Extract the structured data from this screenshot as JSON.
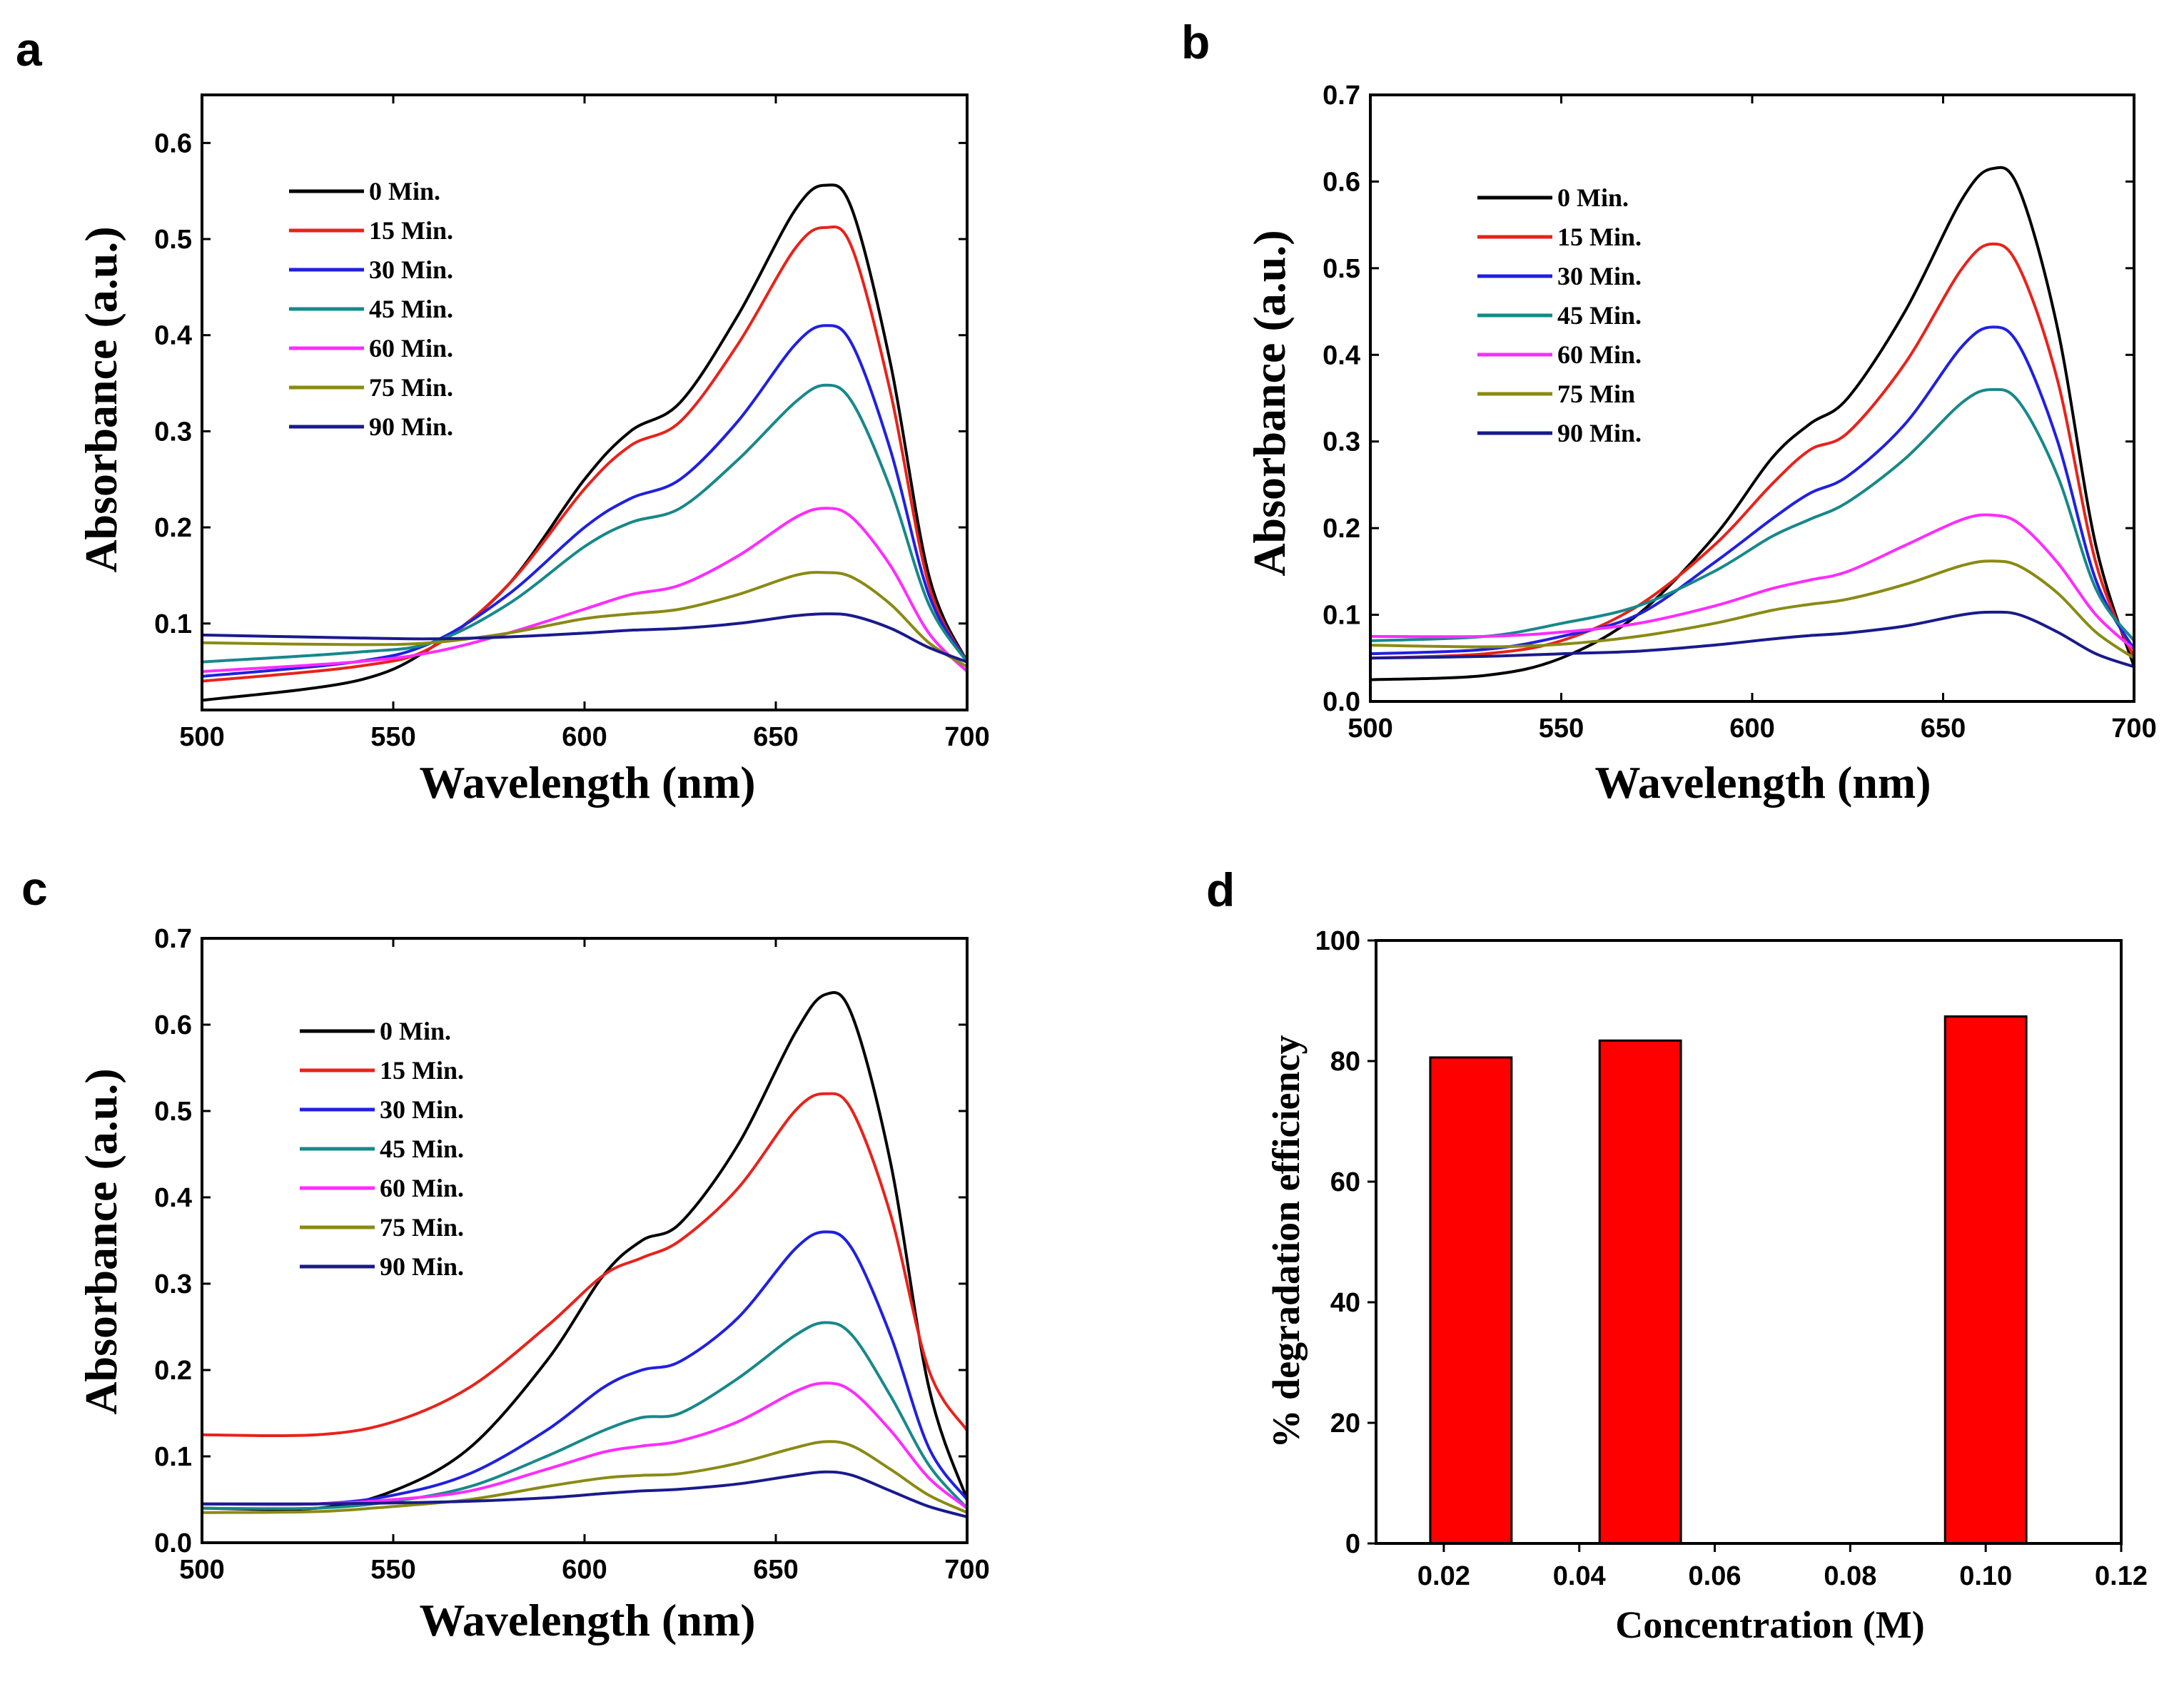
{
  "chart_data": [
    {
      "panel": "a",
      "type": "line",
      "xlabel": "Wavelength (nm)",
      "ylabel": "Absorbance (a.u.)",
      "xlim": [
        500,
        700
      ],
      "ylim": [
        0.01,
        0.65
      ],
      "xticks": [
        500,
        550,
        600,
        650,
        700
      ],
      "yticks": [
        0.1,
        0.2,
        0.3,
        0.4,
        0.5,
        0.6
      ],
      "series": [
        {
          "name": "0 Min.",
          "color": "#000000",
          "x": [
            500,
            540,
            560,
            580,
            600,
            612,
            625,
            640,
            655,
            663,
            670,
            680,
            690,
            700
          ],
          "y": [
            0.02,
            0.04,
            0.075,
            0.14,
            0.25,
            0.3,
            0.33,
            0.42,
            0.53,
            0.556,
            0.53,
            0.37,
            0.15,
            0.06
          ]
        },
        {
          "name": "15 Min.",
          "color": "#e8221b",
          "x": [
            500,
            540,
            560,
            580,
            600,
            612,
            625,
            640,
            655,
            663,
            670,
            680,
            690,
            700
          ],
          "y": [
            0.04,
            0.055,
            0.075,
            0.14,
            0.24,
            0.285,
            0.31,
            0.39,
            0.49,
            0.512,
            0.49,
            0.34,
            0.14,
            0.06
          ]
        },
        {
          "name": "30 Min.",
          "color": "#2020e0",
          "x": [
            500,
            540,
            560,
            580,
            600,
            612,
            625,
            640,
            655,
            663,
            670,
            680,
            690,
            700
          ],
          "y": [
            0.045,
            0.06,
            0.08,
            0.13,
            0.2,
            0.23,
            0.25,
            0.31,
            0.39,
            0.41,
            0.39,
            0.28,
            0.13,
            0.06
          ]
        },
        {
          "name": "45 Min.",
          "color": "#17888a",
          "x": [
            500,
            540,
            560,
            580,
            600,
            612,
            625,
            640,
            655,
            663,
            670,
            680,
            690,
            700
          ],
          "y": [
            0.06,
            0.07,
            0.08,
            0.12,
            0.18,
            0.205,
            0.22,
            0.27,
            0.33,
            0.348,
            0.33,
            0.24,
            0.12,
            0.06
          ]
        },
        {
          "name": "60 Min.",
          "color": "#ff2bff",
          "x": [
            500,
            540,
            560,
            580,
            600,
            612,
            625,
            640,
            655,
            663,
            670,
            680,
            690,
            700
          ],
          "y": [
            0.05,
            0.06,
            0.07,
            0.09,
            0.115,
            0.13,
            0.14,
            0.17,
            0.21,
            0.22,
            0.21,
            0.16,
            0.09,
            0.05
          ]
        },
        {
          "name": "75 Min.",
          "color": "#8a8a14",
          "x": [
            500,
            540,
            560,
            580,
            600,
            612,
            625,
            640,
            655,
            663,
            670,
            680,
            690,
            700
          ],
          "y": [
            0.08,
            0.078,
            0.08,
            0.09,
            0.105,
            0.11,
            0.115,
            0.13,
            0.15,
            0.153,
            0.148,
            0.12,
            0.08,
            0.055
          ]
        },
        {
          "name": "90 Min.",
          "color": "#1a1a8c",
          "x": [
            500,
            540,
            560,
            580,
            600,
            612,
            625,
            640,
            655,
            663,
            670,
            680,
            690,
            700
          ],
          "y": [
            0.088,
            0.085,
            0.084,
            0.086,
            0.09,
            0.093,
            0.095,
            0.1,
            0.108,
            0.11,
            0.108,
            0.095,
            0.075,
            0.06
          ]
        }
      ]
    },
    {
      "panel": "b",
      "type": "line",
      "xlabel": "Wavelength (nm)",
      "ylabel": "Absorbance (a.u.)",
      "xlim": [
        500,
        700
      ],
      "ylim": [
        0.0,
        0.7
      ],
      "xticks": [
        500,
        550,
        600,
        650,
        700
      ],
      "yticks": [
        0.0,
        0.1,
        0.2,
        0.3,
        0.4,
        0.5,
        0.6,
        0.7
      ],
      "series": [
        {
          "name": "0 Min.",
          "color": "#000000",
          "x": [
            500,
            530,
            550,
            570,
            590,
            605,
            615,
            625,
            640,
            655,
            663,
            670,
            680,
            690,
            700
          ],
          "y": [
            0.025,
            0.03,
            0.05,
            0.1,
            0.19,
            0.28,
            0.32,
            0.35,
            0.45,
            0.58,
            0.615,
            0.59,
            0.43,
            0.18,
            0.04
          ]
        },
        {
          "name": "15 Min.",
          "color": "#e8221b",
          "x": [
            500,
            530,
            550,
            570,
            590,
            605,
            615,
            625,
            640,
            655,
            663,
            670,
            680,
            690,
            700
          ],
          "y": [
            0.05,
            0.055,
            0.07,
            0.11,
            0.18,
            0.25,
            0.29,
            0.31,
            0.39,
            0.5,
            0.528,
            0.5,
            0.37,
            0.16,
            0.05
          ]
        },
        {
          "name": "30 Min.",
          "color": "#2020e0",
          "x": [
            500,
            530,
            550,
            570,
            590,
            605,
            615,
            625,
            640,
            655,
            663,
            670,
            680,
            690,
            700
          ],
          "y": [
            0.055,
            0.06,
            0.075,
            0.1,
            0.16,
            0.21,
            0.24,
            0.26,
            0.32,
            0.41,
            0.432,
            0.41,
            0.3,
            0.14,
            0.06
          ]
        },
        {
          "name": "45 Min.",
          "color": "#17888a",
          "x": [
            500,
            530,
            550,
            570,
            590,
            605,
            615,
            625,
            640,
            655,
            663,
            670,
            680,
            690,
            700
          ],
          "y": [
            0.07,
            0.075,
            0.09,
            0.11,
            0.15,
            0.19,
            0.21,
            0.23,
            0.28,
            0.345,
            0.36,
            0.345,
            0.26,
            0.13,
            0.07
          ]
        },
        {
          "name": "60 Min.",
          "color": "#ff2bff",
          "x": [
            500,
            530,
            550,
            570,
            590,
            605,
            615,
            625,
            640,
            655,
            663,
            670,
            680,
            690,
            700
          ],
          "y": [
            0.075,
            0.075,
            0.08,
            0.09,
            0.11,
            0.13,
            0.14,
            0.15,
            0.18,
            0.21,
            0.215,
            0.205,
            0.16,
            0.1,
            0.06
          ]
        },
        {
          "name": "75 Min",
          "color": "#8a8a14",
          "x": [
            500,
            530,
            550,
            570,
            590,
            605,
            615,
            625,
            640,
            655,
            663,
            670,
            680,
            690,
            700
          ],
          "y": [
            0.065,
            0.063,
            0.066,
            0.075,
            0.09,
            0.105,
            0.112,
            0.118,
            0.135,
            0.157,
            0.162,
            0.156,
            0.125,
            0.08,
            0.05
          ]
        },
        {
          "name": "90 Min.",
          "color": "#1a1a8c",
          "x": [
            500,
            530,
            550,
            570,
            590,
            605,
            615,
            625,
            640,
            655,
            663,
            670,
            680,
            690,
            700
          ],
          "y": [
            0.05,
            0.052,
            0.055,
            0.058,
            0.065,
            0.072,
            0.076,
            0.079,
            0.087,
            0.1,
            0.103,
            0.1,
            0.08,
            0.055,
            0.04
          ]
        }
      ]
    },
    {
      "panel": "c",
      "type": "line",
      "xlabel": "Wavelength (nm)",
      "ylabel": "Absorbance (a.u.)",
      "xlim": [
        500,
        700
      ],
      "ylim": [
        0.0,
        0.7
      ],
      "xticks": [
        500,
        550,
        600,
        650,
        700
      ],
      "yticks": [
        0.0,
        0.1,
        0.2,
        0.3,
        0.4,
        0.5,
        0.6,
        0.7
      ],
      "series": [
        {
          "name": "0 Min.",
          "color": "#000000",
          "x": [
            500,
            530,
            550,
            570,
            590,
            605,
            615,
            625,
            640,
            655,
            663,
            670,
            680,
            690,
            700
          ],
          "y": [
            0.04,
            0.04,
            0.06,
            0.11,
            0.21,
            0.31,
            0.35,
            0.37,
            0.46,
            0.59,
            0.635,
            0.61,
            0.44,
            0.18,
            0.05
          ]
        },
        {
          "name": "15 Min.",
          "color": "#e8221b",
          "x": [
            500,
            530,
            550,
            570,
            590,
            605,
            615,
            625,
            640,
            655,
            663,
            670,
            680,
            690,
            700
          ],
          "y": [
            0.125,
            0.125,
            0.14,
            0.18,
            0.25,
            0.31,
            0.33,
            0.35,
            0.41,
            0.5,
            0.52,
            0.5,
            0.38,
            0.2,
            0.13
          ]
        },
        {
          "name": "30 Min.",
          "color": "#2020e0",
          "x": [
            500,
            530,
            550,
            570,
            590,
            605,
            615,
            625,
            640,
            655,
            663,
            670,
            680,
            690,
            700
          ],
          "y": [
            0.045,
            0.045,
            0.055,
            0.08,
            0.13,
            0.18,
            0.2,
            0.21,
            0.26,
            0.34,
            0.36,
            0.34,
            0.24,
            0.11,
            0.05
          ]
        },
        {
          "name": "45 Min.",
          "color": "#17888a",
          "x": [
            500,
            530,
            550,
            570,
            590,
            605,
            615,
            625,
            640,
            655,
            663,
            670,
            680,
            690,
            700
          ],
          "y": [
            0.04,
            0.04,
            0.048,
            0.065,
            0.1,
            0.13,
            0.145,
            0.15,
            0.19,
            0.24,
            0.255,
            0.24,
            0.17,
            0.09,
            0.04
          ]
        },
        {
          "name": "60 Min.",
          "color": "#ff2bff",
          "x": [
            500,
            530,
            550,
            570,
            590,
            605,
            615,
            625,
            640,
            655,
            663,
            670,
            680,
            690,
            700
          ],
          "y": [
            0.045,
            0.045,
            0.05,
            0.06,
            0.085,
            0.105,
            0.112,
            0.118,
            0.14,
            0.175,
            0.185,
            0.175,
            0.13,
            0.075,
            0.04
          ]
        },
        {
          "name": "75 Min.",
          "color": "#8a8a14",
          "x": [
            500,
            530,
            550,
            570,
            590,
            605,
            615,
            625,
            640,
            655,
            663,
            670,
            680,
            690,
            700
          ],
          "y": [
            0.035,
            0.036,
            0.042,
            0.05,
            0.065,
            0.075,
            0.078,
            0.08,
            0.092,
            0.11,
            0.117,
            0.112,
            0.085,
            0.055,
            0.035
          ]
        },
        {
          "name": "90 Min.",
          "color": "#1a1a8c",
          "x": [
            500,
            530,
            550,
            570,
            590,
            605,
            615,
            625,
            640,
            655,
            663,
            670,
            680,
            690,
            700
          ],
          "y": [
            0.045,
            0.045,
            0.046,
            0.048,
            0.052,
            0.057,
            0.06,
            0.062,
            0.068,
            0.078,
            0.082,
            0.078,
            0.06,
            0.042,
            0.03
          ]
        }
      ]
    },
    {
      "panel": "d",
      "type": "bar",
      "xlabel": "Concentration (M)",
      "ylabel": "% degradation efficiency",
      "xlim": [
        0.01,
        0.12
      ],
      "ylim": [
        0,
        100
      ],
      "xticks": [
        "0.02",
        "0.04",
        "0.06",
        "0.08",
        "0.10",
        "0.12"
      ],
      "yticks": [
        0,
        20,
        40,
        60,
        80,
        100
      ],
      "bar_width": 0.012,
      "x": [
        0.024,
        0.049,
        0.1
      ],
      "values": [
        80.6,
        83.4,
        87.4
      ],
      "color": "#ff0000"
    }
  ]
}
